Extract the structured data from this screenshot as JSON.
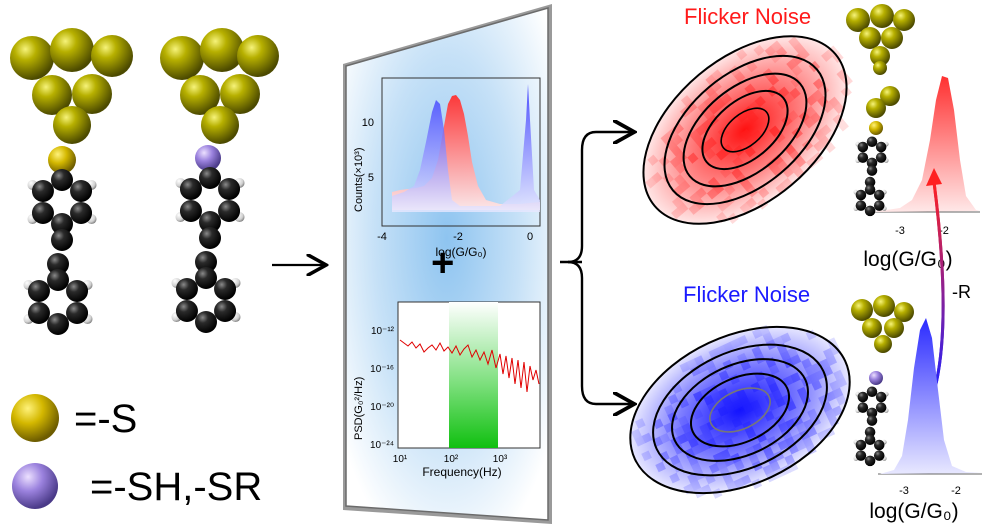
{
  "legend": {
    "s_label": "=-S",
    "sh_label": "=-SH,-SR"
  },
  "panel_top": {
    "y_axis_label": "Counts(×10³)",
    "y_ticks": [
      "10",
      "5"
    ],
    "x_axis_label": "log(G/G₀)",
    "x_ticks": [
      "-4",
      "-2",
      "0"
    ]
  },
  "panel_bottom": {
    "y_axis_label": "PSD(G₀²/Hz)",
    "y_ticks": [
      "10⁻¹²",
      "10⁻¹⁶",
      "10⁻²⁰",
      "10⁻²⁴"
    ],
    "x_axis_label": "Frequency(Hz)",
    "x_ticks": [
      "10¹",
      "10²",
      "10³"
    ]
  },
  "plus_sign": "+",
  "top_result": {
    "title": "Flicker Noise",
    "title_color": "#ff1a1a",
    "x_ticks": [
      "-3",
      "-2"
    ],
    "x_axis_label": "log(G/G₀)"
  },
  "bottom_result": {
    "title": "Flicker Noise",
    "title_color": "#1a1aff",
    "x_ticks": [
      "-3",
      "-2"
    ],
    "x_axis_label": "log(G/G₀)"
  },
  "arrow_label": "-R",
  "colors": {
    "gold": "#9a9a00",
    "sulfur": "#c8b400",
    "sulfur_h": "#9a7fd6",
    "carbon": "#1a1a1a",
    "red": "#ff2020",
    "blue": "#2020ff",
    "green": "#10d010"
  }
}
